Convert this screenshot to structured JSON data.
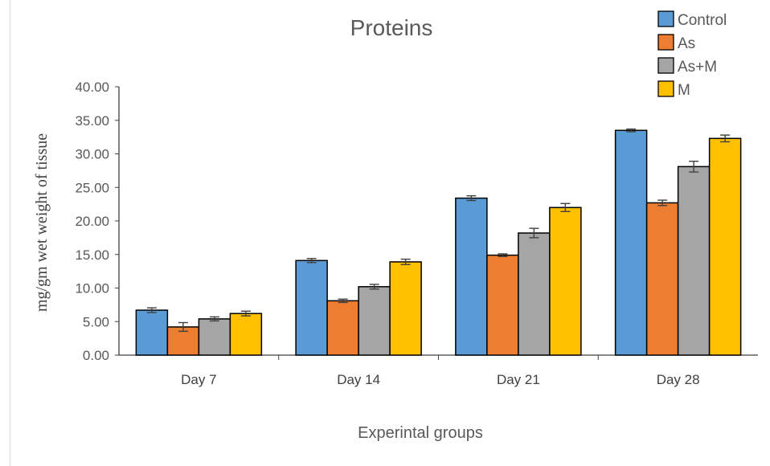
{
  "chart_data": {
    "type": "bar",
    "title": "Proteins",
    "xlabel": "Experintal groups",
    "ylabel": "mg/gm wet weight of tissue",
    "categories": [
      "Day 7",
      "Day 14",
      "Day 21",
      "Day 28"
    ],
    "ylim": [
      0,
      40
    ],
    "yticks": [
      "0.00",
      "5.00",
      "10.00",
      "15.00",
      "20.00",
      "25.00",
      "30.00",
      "35.00",
      "40.00"
    ],
    "grid": false,
    "legend_position": "top-right",
    "series": [
      {
        "name": "Control",
        "color": "#5b9bd5",
        "values": [
          6.7,
          14.1,
          23.4,
          33.5
        ],
        "errors": [
          0.35,
          0.3,
          0.35,
          0.2
        ]
      },
      {
        "name": "As",
        "color": "#ed7d31",
        "values": [
          4.2,
          8.1,
          14.9,
          22.7
        ],
        "errors": [
          0.65,
          0.25,
          0.2,
          0.4
        ]
      },
      {
        "name": "As+M",
        "color": "#a5a5a5",
        "values": [
          5.4,
          10.2,
          18.2,
          28.1
        ],
        "errors": [
          0.3,
          0.35,
          0.7,
          0.8
        ]
      },
      {
        "name": "M",
        "color": "#ffc000",
        "values": [
          6.2,
          13.9,
          22.0,
          32.3
        ],
        "errors": [
          0.35,
          0.4,
          0.6,
          0.5
        ]
      }
    ]
  }
}
